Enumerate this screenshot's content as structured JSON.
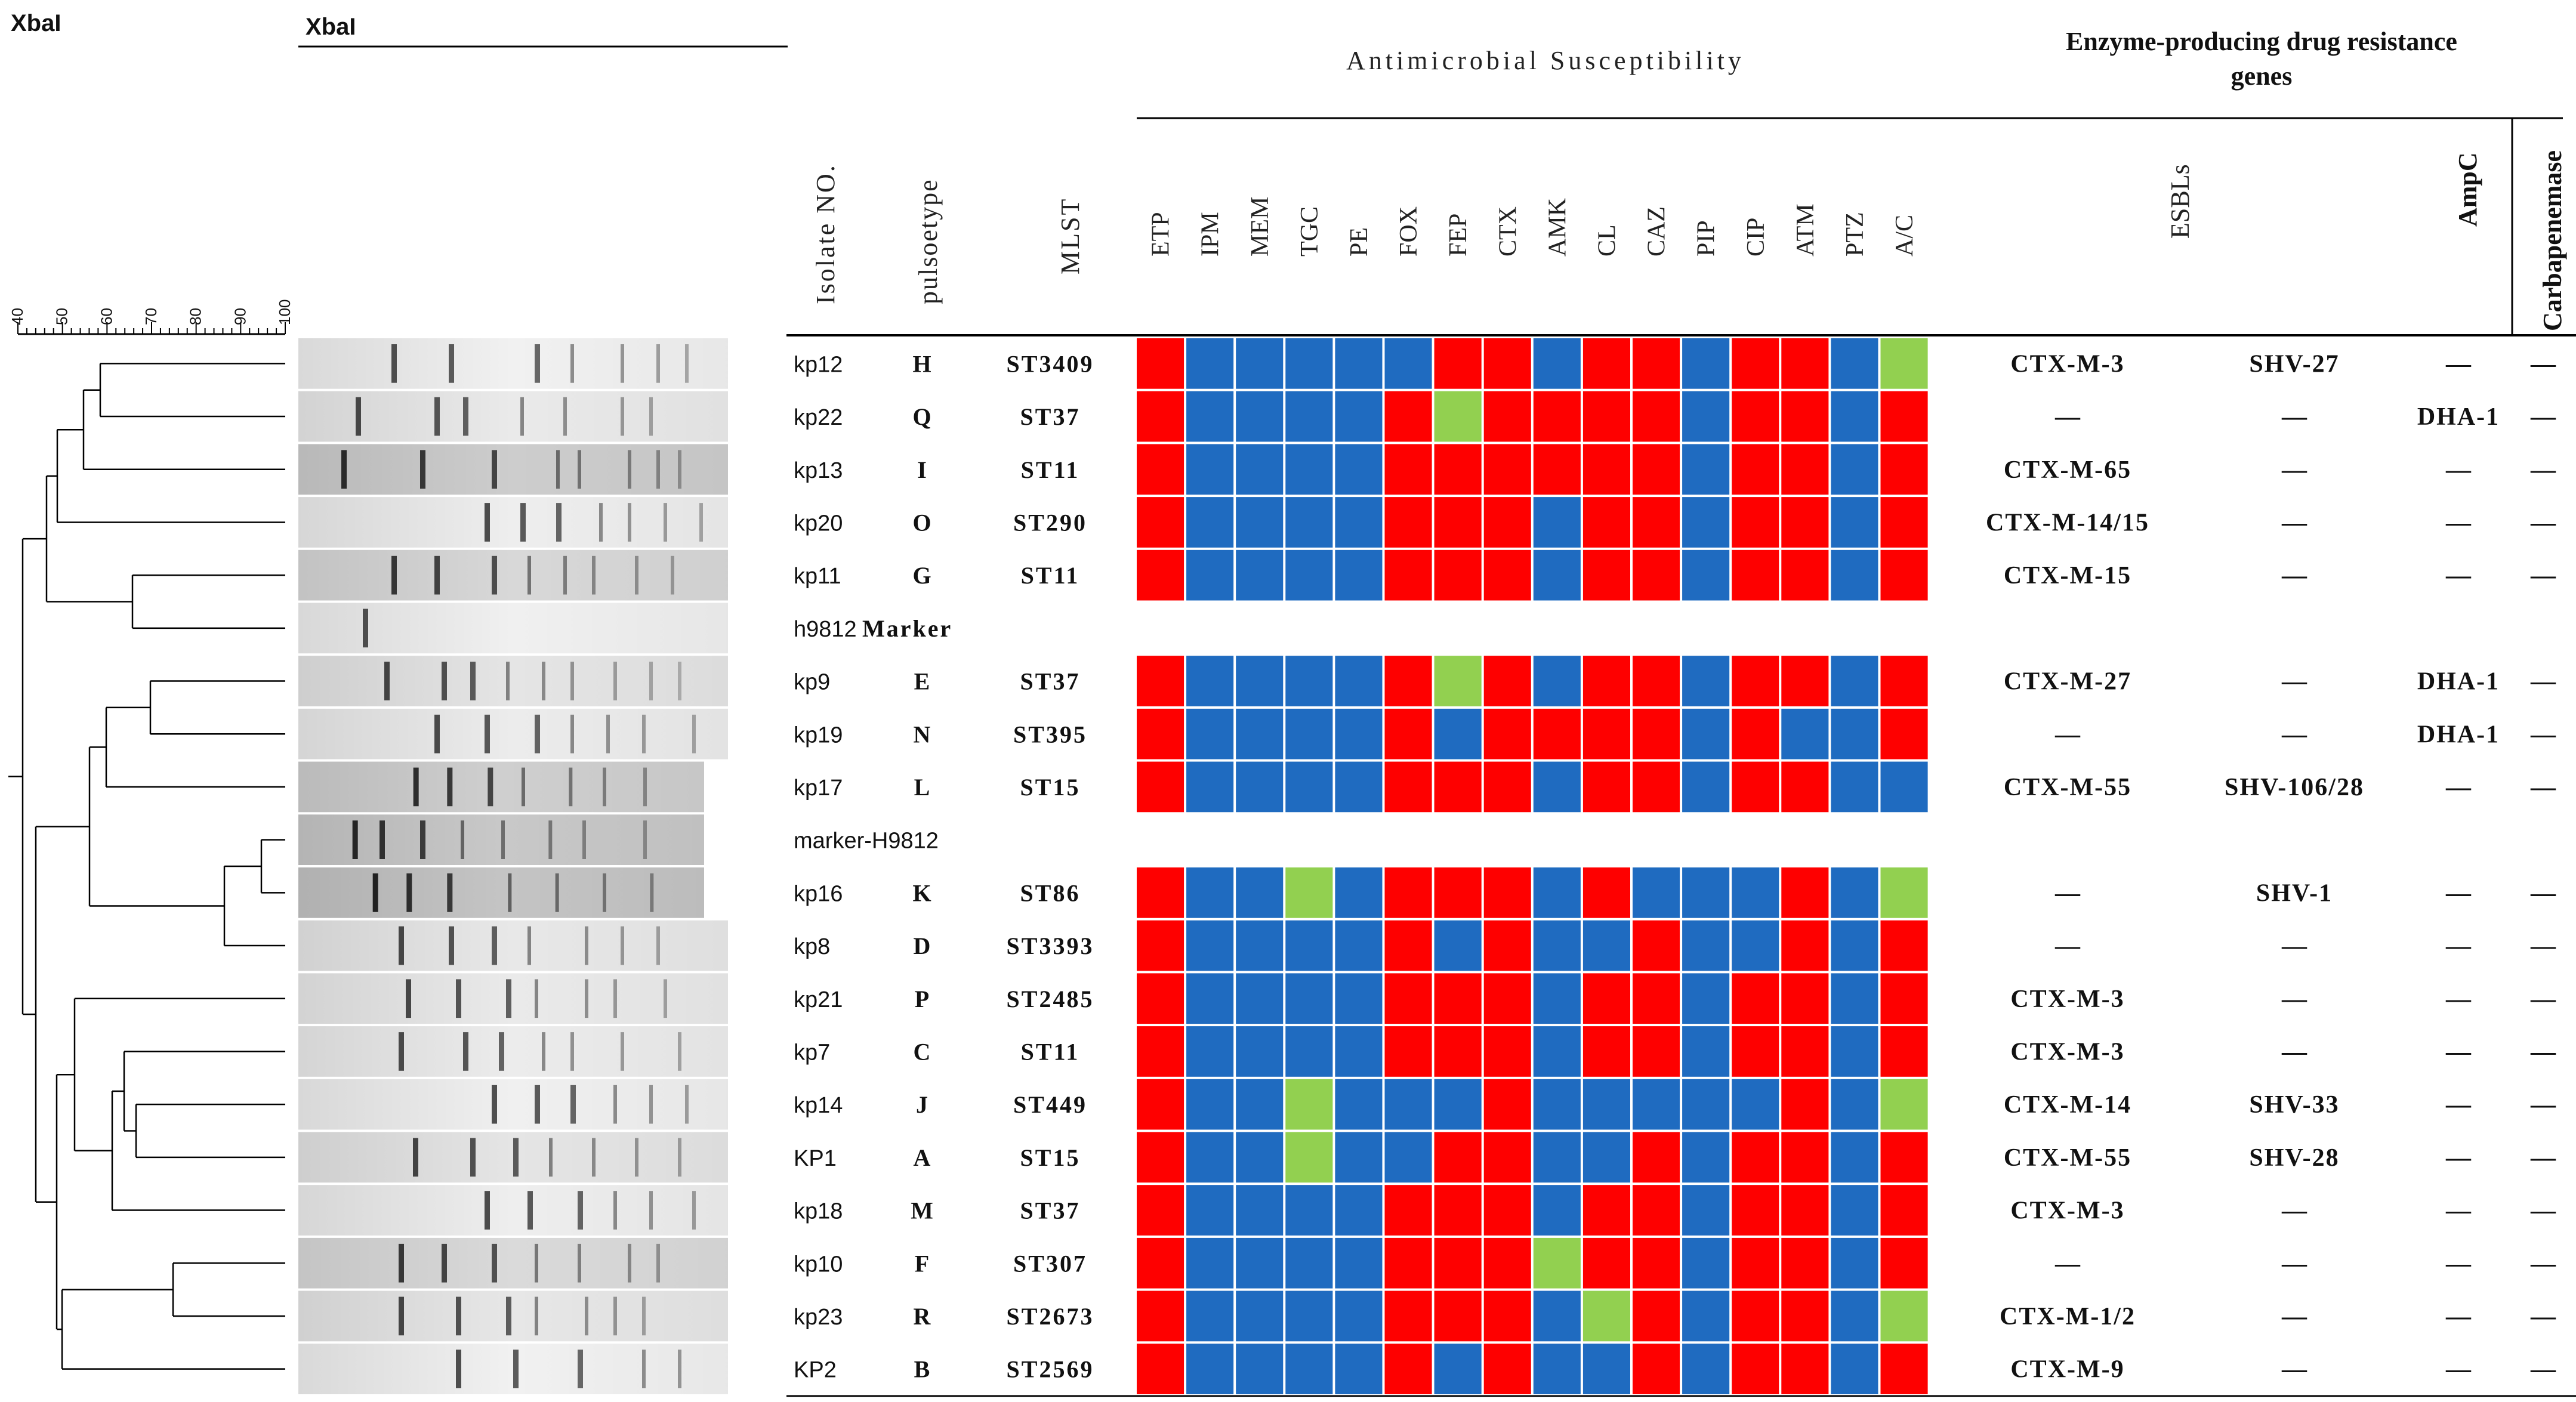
{
  "titles": {
    "dendro_enzyme": "XbaI",
    "gel_enzyme": "XbaI",
    "antimicrobial_header": "Antimicrobial Susceptibility",
    "enzyme_header_line1": "Enzyme-producing drug resistance",
    "enzyme_header_line2": "genes"
  },
  "scale_ticks": [
    "40",
    "50",
    "60",
    "70",
    "80",
    "90",
    "100"
  ],
  "column_headers": {
    "isolate": "Isolate NO.",
    "pulsotype": "pulsoetype",
    "mlst": "MLST",
    "esbls": "ESBLs",
    "ampc": "AmpC",
    "carbapenemase": "Carbapenemase"
  },
  "antibiotics": [
    "ETP",
    "IPM",
    "MEM",
    "TGC",
    "PE",
    "FOX",
    "FEP",
    "CTX",
    "AMK",
    "CL",
    "CAZ",
    "PIP",
    "CIP",
    "ATM",
    "PTZ",
    "A/C"
  ],
  "colors": {
    "resistant": "#fe0000",
    "susceptible": "#1f6bc0",
    "intermediate": "#92d050",
    "line": "#000000",
    "text": "#111111"
  },
  "legend_codes": {
    "R": "resistant",
    "S": "susceptible",
    "I": "intermediate"
  },
  "rows": [
    {
      "isolate": "kp12",
      "pulsotype": "H",
      "mlst": "ST3409",
      "ast": "RSSSSSRRSRRSRRSI",
      "esbl": "CTX-M-3",
      "shv": "SHV-27",
      "ampc": "—",
      "carb": "—"
    },
    {
      "isolate": "kp22",
      "pulsotype": "Q",
      "mlst": "ST37",
      "ast": "RSSSSRIRRRRSRRSR",
      "esbl": "—",
      "shv": "—",
      "ampc": "DHA-1",
      "carb": "—"
    },
    {
      "isolate": "kp13",
      "pulsotype": "I",
      "mlst": "ST11",
      "ast": "RSSSSRRRRRRSRRSR",
      "esbl": "CTX-M-65",
      "shv": "—",
      "ampc": "—",
      "carb": "—"
    },
    {
      "isolate": "kp20",
      "pulsotype": "O",
      "mlst": "ST290",
      "ast": "RSSSSRRRSRRSRRSR",
      "esbl": "CTX-M-14/15",
      "shv": "—",
      "ampc": "—",
      "carb": "—"
    },
    {
      "isolate": "kp11",
      "pulsotype": "G",
      "mlst": "ST11",
      "ast": "RSSSSRRRSRRSRRSR",
      "esbl": "CTX-M-15",
      "shv": "—",
      "ampc": "—",
      "carb": "—"
    },
    {
      "isolate": "h9812",
      "marker": "Marker"
    },
    {
      "isolate": "kp9",
      "pulsotype": "E",
      "mlst": "ST37",
      "ast": "RSSSSRIRSRRSRRSR",
      "esbl": "CTX-M-27",
      "shv": "—",
      "ampc": "DHA-1",
      "carb": "—"
    },
    {
      "isolate": "kp19",
      "pulsotype": "N",
      "mlst": "ST395",
      "ast": "RSSSSRSRRRRSRSSR",
      "esbl": "—",
      "shv": "—",
      "ampc": "DHA-1",
      "carb": "—"
    },
    {
      "isolate": "kp17",
      "pulsotype": "L",
      "mlst": "ST15",
      "ast": "RSSSSRRRSRRSRRSS",
      "esbl": "CTX-M-55",
      "shv": "SHV-106/28",
      "ampc": "—",
      "carb": "—"
    },
    {
      "isolate": "marker-H9812"
    },
    {
      "isolate": "kp16",
      "pulsotype": "K",
      "mlst": "ST86",
      "ast": "RSSISRRRSRSSSRSI",
      "esbl": "—",
      "shv": "SHV-1",
      "ampc": "—",
      "carb": "—"
    },
    {
      "isolate": "kp8",
      "pulsotype": "D",
      "mlst": "ST3393",
      "ast": "RSSSSRSRSSRSSRSR",
      "esbl": "—",
      "shv": "—",
      "ampc": "—",
      "carb": "—"
    },
    {
      "isolate": "kp21",
      "pulsotype": "P",
      "mlst": "ST2485",
      "ast": "RSSSSRRRSRRSRRSR",
      "esbl": "CTX-M-3",
      "shv": "—",
      "ampc": "—",
      "carb": "—"
    },
    {
      "isolate": "kp7",
      "pulsotype": "C",
      "mlst": "ST11",
      "ast": "RSSSSRRRSRRSRRSR",
      "esbl": "CTX-M-3",
      "shv": "—",
      "ampc": "—",
      "carb": "—"
    },
    {
      "isolate": "kp14",
      "pulsotype": "J",
      "mlst": "ST449",
      "ast": "RSSISSSRSSSSSRSI",
      "esbl": "CTX-M-14",
      "shv": "SHV-33",
      "ampc": "—",
      "carb": "—"
    },
    {
      "isolate": "KP1",
      "pulsotype": "A",
      "mlst": "ST15",
      "ast": "RSSISSRRSSRSRRSR",
      "esbl": "CTX-M-55",
      "shv": "SHV-28",
      "ampc": "—",
      "carb": "—"
    },
    {
      "isolate": "kp18",
      "pulsotype": "M",
      "mlst": "ST37",
      "ast": "RSSSSRRRSRRSRRSR",
      "esbl": "CTX-M-3",
      "shv": "—",
      "ampc": "—",
      "carb": "—"
    },
    {
      "isolate": "kp10",
      "pulsotype": "F",
      "mlst": "ST307",
      "ast": "RSSSSRRRIRRSRRSR",
      "esbl": "—",
      "shv": "—",
      "ampc": "—",
      "carb": "—"
    },
    {
      "isolate": "kp23",
      "pulsotype": "R",
      "mlst": "ST2673",
      "ast": "RSSSSRRRSIRSRRSI",
      "esbl": "CTX-M-1/2",
      "shv": "—",
      "ampc": "—",
      "carb": "—"
    },
    {
      "isolate": "KP2",
      "pulsotype": "B",
      "mlst": "ST2569",
      "ast": "RSSSSRSRSSRSRRSR",
      "esbl": "CTX-M-9",
      "shv": "—",
      "ampc": "—",
      "carb": "—"
    }
  ],
  "gel": {
    "lane_darkness": [
      0.05,
      0.12,
      0.45,
      0.08,
      0.32,
      0.06,
      0.18,
      0.1,
      0.42,
      0.5,
      0.55,
      0.14,
      0.12,
      0.1,
      0.06,
      0.18,
      0.08,
      0.3,
      0.16,
      0.04
    ],
    "bands": [
      [
        13,
        21,
        33,
        38,
        45,
        50,
        54
      ],
      [
        8,
        19,
        23,
        31,
        37,
        45,
        49
      ],
      [
        6,
        17,
        27,
        36,
        39,
        46,
        50,
        53
      ],
      [
        26,
        31,
        36,
        42,
        46,
        51,
        56
      ],
      [
        13,
        19,
        27,
        32,
        37,
        41,
        47,
        52
      ],
      [
        9
      ],
      [
        12,
        20,
        24,
        29,
        34,
        38,
        44,
        49,
        53
      ],
      [
        19,
        26,
        33,
        38,
        43,
        48,
        55
      ],
      [
        17,
        22,
        28,
        33,
        40,
        45,
        51
      ],
      [
        8,
        12,
        18,
        24,
        30,
        37,
        42,
        51
      ],
      [
        11,
        16,
        22,
        31,
        38,
        45,
        52
      ],
      [
        14,
        21,
        27,
        32,
        40,
        45,
        50
      ],
      [
        15,
        22,
        29,
        33,
        40,
        44,
        51
      ],
      [
        14,
        23,
        28,
        34,
        38,
        45,
        53
      ],
      [
        27,
        33,
        38,
        44,
        49,
        54
      ],
      [
        16,
        24,
        30,
        35,
        41,
        47,
        53
      ],
      [
        26,
        32,
        39,
        44,
        49,
        55
      ],
      [
        14,
        20,
        27,
        33,
        39,
        46,
        50
      ],
      [
        14,
        22,
        29,
        33,
        40,
        44,
        48
      ],
      [
        22,
        30,
        39,
        48,
        53
      ]
    ]
  }
}
